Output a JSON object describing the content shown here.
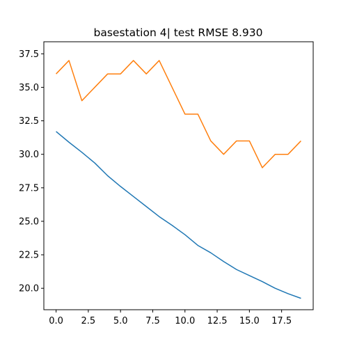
{
  "chart_data": {
    "type": "line",
    "title": "basestation 4| test RMSE 8.930",
    "xlabel": "",
    "ylabel": "",
    "xlim": [
      -0.95,
      19.95
    ],
    "ylim": [
      18.4,
      38.4
    ],
    "xticks": [
      0.0,
      2.5,
      5.0,
      7.5,
      10.0,
      12.5,
      15.0,
      17.5
    ],
    "xtick_labels": [
      "0.0",
      "2.5",
      "5.0",
      "7.5",
      "10.0",
      "12.5",
      "15.0",
      "17.5"
    ],
    "yticks": [
      20.0,
      22.5,
      25.0,
      27.5,
      30.0,
      32.5,
      35.0,
      37.5
    ],
    "ytick_labels": [
      "20.0",
      "22.5",
      "25.0",
      "27.5",
      "30.0",
      "32.5",
      "35.0",
      "37.5"
    ],
    "grid": false,
    "legend": "none",
    "x": [
      0,
      1,
      2,
      3,
      4,
      5,
      6,
      7,
      8,
      9,
      10,
      11,
      12,
      13,
      14,
      15,
      16,
      17,
      18,
      19
    ],
    "series": [
      {
        "color": "#1f77b4",
        "values": [
          31.7,
          30.9,
          30.15,
          29.35,
          28.4,
          27.6,
          26.85,
          26.1,
          25.35,
          24.7,
          24.0,
          23.2,
          22.65,
          22.0,
          21.4,
          20.95,
          20.5,
          20.0,
          19.6,
          19.25
        ]
      },
      {
        "color": "#ff7f0e",
        "values": [
          36,
          37,
          34,
          35,
          36,
          36,
          37,
          36,
          37,
          35,
          33,
          33,
          31,
          30,
          31,
          31,
          29,
          30,
          30,
          31
        ]
      }
    ]
  }
}
